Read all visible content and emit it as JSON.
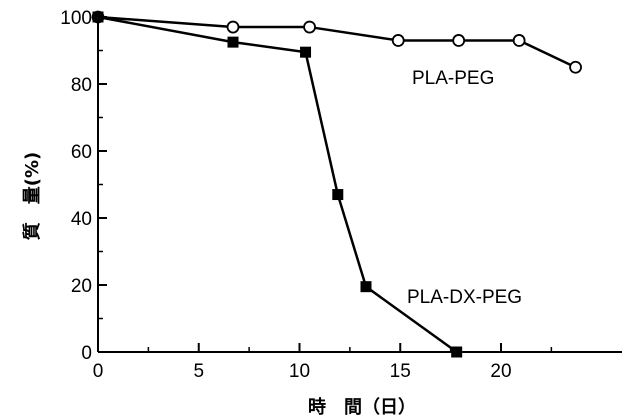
{
  "chart_data": {
    "type": "line",
    "title": "",
    "xlabel": "時　間（日）",
    "ylabel": "質　量(%)",
    "xlim": [
      0,
      26
    ],
    "ylim": [
      0,
      100
    ],
    "x_ticks": [
      0,
      5,
      10,
      15,
      20
    ],
    "x_tick_labels": [
      "0",
      "5",
      "10",
      "15",
      "20"
    ],
    "y_ticks": [
      0,
      20,
      40,
      60,
      80,
      100
    ],
    "y_tick_labels": [
      "0",
      "20",
      "40",
      "60",
      "80",
      "100"
    ],
    "grid": false,
    "legend": "none (series labeled directly on the plot)",
    "series": [
      {
        "name": "PLA-PEG",
        "marker": "open-circle",
        "color": "#000000",
        "x": [
          0,
          6.7,
          10.5,
          14.9,
          17.9,
          20.9,
          23.7
        ],
        "y": [
          100,
          97,
          97,
          93,
          93,
          93,
          85
        ]
      },
      {
        "name": "PLA-DX-PEG",
        "marker": "filled-square",
        "color": "#000000",
        "x": [
          0,
          6.7,
          10.3,
          11.9,
          13.3,
          17.8
        ],
        "y": [
          100,
          92.5,
          89.5,
          47,
          19.5,
          0
        ]
      }
    ]
  }
}
